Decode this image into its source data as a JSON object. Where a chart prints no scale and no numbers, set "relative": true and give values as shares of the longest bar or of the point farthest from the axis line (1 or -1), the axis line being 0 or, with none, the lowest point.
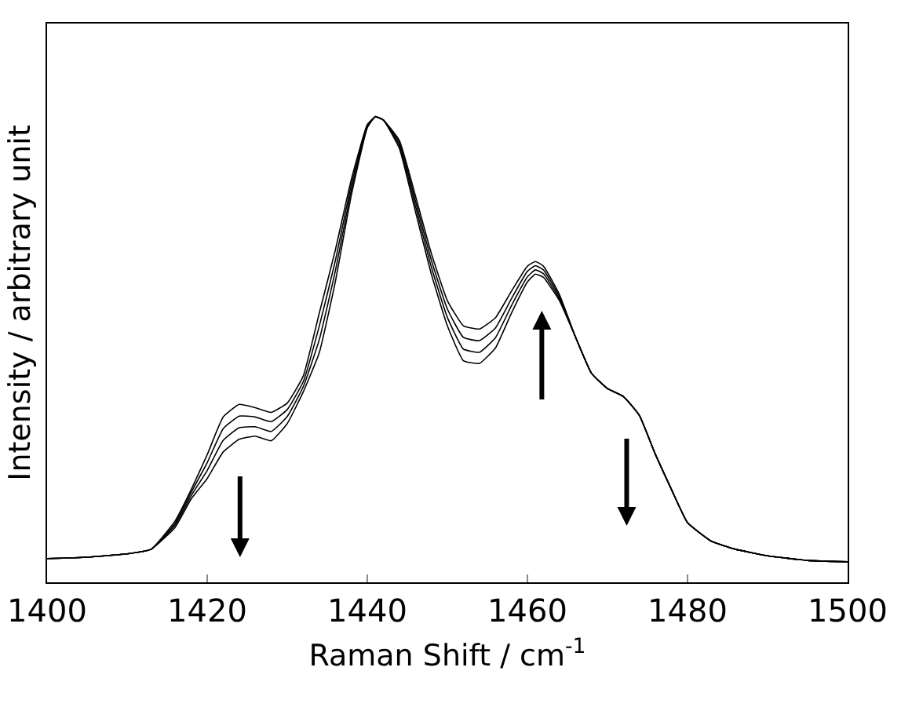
{
  "chart_data": {
    "type": "line",
    "relative": true,
    "xlabel": "Raman Shift / cm$^{-1}$",
    "ylabel": "Intensity / arbitrary unit",
    "x": [
      1400,
      1405,
      1410,
      1413,
      1416,
      1418,
      1420,
      1422,
      1424,
      1426,
      1428,
      1430,
      1432,
      1434,
      1436,
      1438,
      1440,
      1441,
      1442,
      1444,
      1446,
      1448,
      1450,
      1452,
      1454,
      1456,
      1458,
      1460,
      1461,
      1462,
      1464,
      1466,
      1468,
      1470,
      1472,
      1474,
      1476,
      1478,
      1480,
      1483,
      1486,
      1490,
      1495,
      1500
    ],
    "xlim": [
      1400,
      1500
    ],
    "xticks": [
      1400,
      1420,
      1440,
      1460,
      1480,
      1500
    ],
    "grid": false,
    "marker": "none",
    "line_style": "solid",
    "series": [
      {
        "color": "#000000",
        "values": [
          0.051,
          0.054,
          0.061,
          0.071,
          0.132,
          0.199,
          0.274,
          0.355,
          0.382,
          0.375,
          0.365,
          0.385,
          0.443,
          0.578,
          0.713,
          0.865,
          0.983,
          1.0,
          0.993,
          0.932,
          0.797,
          0.662,
          0.551,
          0.476,
          0.47,
          0.503,
          0.578,
          0.645,
          0.662,
          0.655,
          0.605,
          0.527,
          0.449,
          0.416,
          0.399,
          0.358,
          0.274,
          0.199,
          0.128,
          0.088,
          0.071,
          0.057,
          0.047,
          0.044
        ]
      },
      {
        "color": "#000000",
        "values": [
          0.051,
          0.054,
          0.061,
          0.071,
          0.127,
          0.193,
          0.257,
          0.33,
          0.357,
          0.355,
          0.345,
          0.371,
          0.431,
          0.55,
          0.69,
          0.854,
          0.981,
          1.0,
          0.993,
          0.938,
          0.809,
          0.677,
          0.569,
          0.501,
          0.494,
          0.525,
          0.594,
          0.656,
          0.671,
          0.663,
          0.609,
          0.527,
          0.449,
          0.416,
          0.399,
          0.358,
          0.274,
          0.199,
          0.128,
          0.088,
          0.071,
          0.057,
          0.047,
          0.044
        ]
      },
      {
        "color": "#000000",
        "values": [
          0.051,
          0.054,
          0.061,
          0.071,
          0.123,
          0.186,
          0.24,
          0.305,
          0.332,
          0.334,
          0.324,
          0.356,
          0.42,
          0.521,
          0.668,
          0.842,
          0.978,
          1.0,
          0.993,
          0.944,
          0.82,
          0.692,
          0.587,
          0.526,
          0.519,
          0.546,
          0.609,
          0.668,
          0.68,
          0.671,
          0.614,
          0.527,
          0.449,
          0.416,
          0.399,
          0.358,
          0.274,
          0.199,
          0.128,
          0.088,
          0.071,
          0.057,
          0.047,
          0.044
        ]
      },
      {
        "color": "#000000",
        "values": [
          0.051,
          0.054,
          0.061,
          0.071,
          0.118,
          0.179,
          0.223,
          0.28,
          0.307,
          0.314,
          0.304,
          0.341,
          0.409,
          0.493,
          0.645,
          0.831,
          0.976,
          1.0,
          0.993,
          0.949,
          0.831,
          0.706,
          0.605,
          0.551,
          0.544,
          0.568,
          0.625,
          0.679,
          0.689,
          0.679,
          0.618,
          0.527,
          0.449,
          0.416,
          0.399,
          0.358,
          0.274,
          0.199,
          0.128,
          0.088,
          0.071,
          0.057,
          0.047,
          0.044
        ]
      }
    ]
  }
}
